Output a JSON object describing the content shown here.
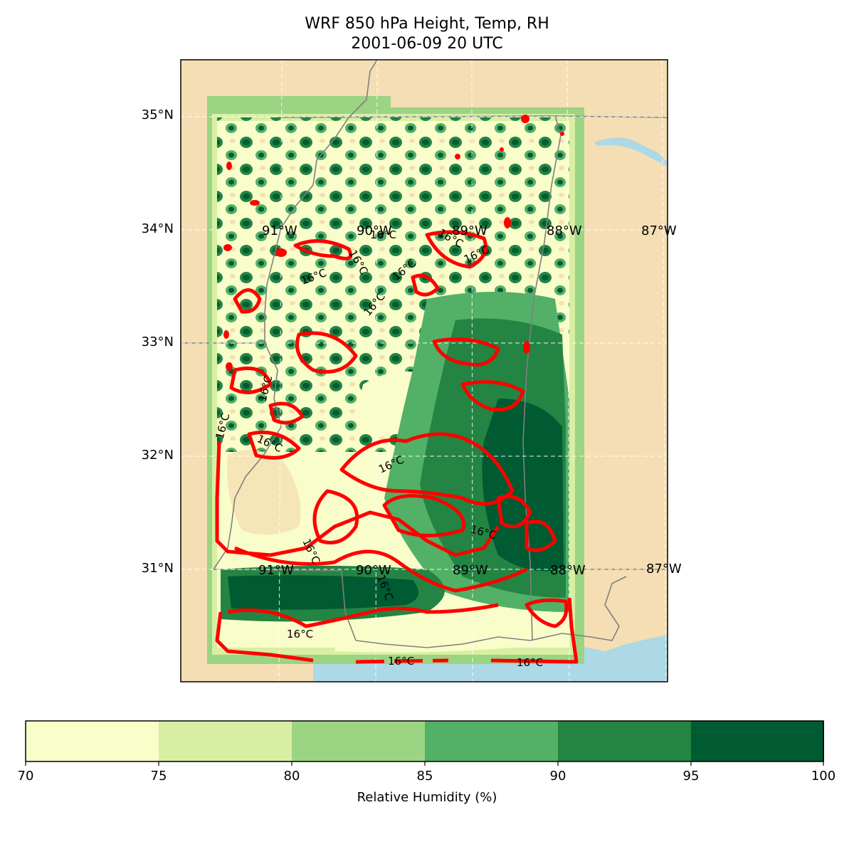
{
  "title": {
    "line1": "WRF 850 hPa Height, Temp, RH",
    "line2": "2001-06-09 20 UTC"
  },
  "map": {
    "lat_labels": [
      "35°N",
      "34°N",
      "33°N",
      "32°N",
      "31°N"
    ],
    "lon_labels_upper": [
      "91°W",
      "90°W",
      "89°W",
      "88°W",
      "87°W"
    ],
    "lon_labels_lower": [
      "91°W",
      "90°W",
      "89°W",
      "88°W",
      "87°W"
    ],
    "temperature_contour_label": "16°C",
    "colors": {
      "land": "#f5deb3",
      "water": "#add8e6",
      "temp_contour": "#ff0000",
      "borders": "#808080"
    }
  },
  "colorbar": {
    "label": "Relative Humidity (%)",
    "ticks": [
      "70",
      "75",
      "80",
      "85",
      "90",
      "95",
      "100"
    ],
    "bins": [
      {
        "range": [
          70,
          75
        ],
        "color": "#f9fdc9"
      },
      {
        "range": [
          75,
          80
        ],
        "color": "#d8efa3"
      },
      {
        "range": [
          80,
          85
        ],
        "color": "#9bd482"
      },
      {
        "range": [
          85,
          90
        ],
        "color": "#52b067"
      },
      {
        "range": [
          90,
          95
        ],
        "color": "#238443"
      },
      {
        "range": [
          95,
          100
        ],
        "color": "#005a32"
      }
    ]
  }
}
